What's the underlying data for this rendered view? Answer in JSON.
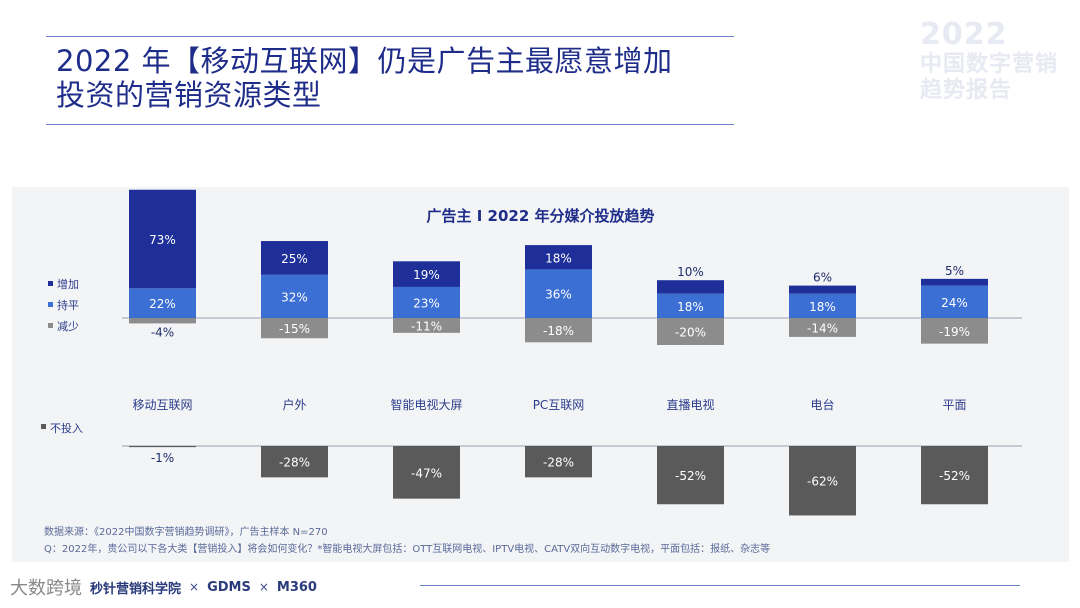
{
  "header": {
    "title_line1": "2022 年【移动互联网】仍是广告主最愿意增加",
    "title_line2": "投资的营销资源类型"
  },
  "watermark": {
    "year": "2022",
    "line1": "中国数字营销",
    "line2": "趋势报告"
  },
  "colors": {
    "increase": "#1e2f9a",
    "flat": "#3b6fd4",
    "decrease": "#8c8c8c",
    "no_invest": "#5a5a5a"
  },
  "chart_data": {
    "type": "bar",
    "title": "广告主 I 2022 年分媒介投放趋势",
    "categories": [
      "移动互联网",
      "户外",
      "智能电视大屏",
      "PC互联网",
      "直播电视",
      "电台",
      "平面"
    ],
    "series": [
      {
        "name": "增加",
        "values": [
          73,
          25,
          19,
          18,
          10,
          6,
          5
        ]
      },
      {
        "name": "持平",
        "values": [
          22,
          32,
          23,
          36,
          18,
          18,
          24
        ]
      },
      {
        "name": "减少",
        "values": [
          -4,
          -15,
          -11,
          -18,
          -20,
          -14,
          -19
        ]
      },
      {
        "name": "不投入",
        "values": [
          -1,
          -28,
          -47,
          -28,
          -52,
          -62,
          -52
        ]
      }
    ],
    "legend_top": [
      "增加",
      "持平",
      "减少"
    ],
    "legend_bottom": "不投入",
    "legend_placement": "left"
  },
  "source": {
    "line1": "数据来源：《2022中国数字营销趋势调研》，广告主样本 N=270",
    "line2": "Q：2022年，贵公司以下各大类【营销投入】将会如何变化？*智能电视大屏包括：OTT互联网电视、IPTV电视、CATV双向互动数字电视，平面包括：报纸、杂志等"
  },
  "footer": {
    "partner1": "秒针营销科学院",
    "sep1": "×",
    "partner2": "GDMS",
    "sep2": "×",
    "partner3": "M360",
    "brand": "大数跨境"
  }
}
